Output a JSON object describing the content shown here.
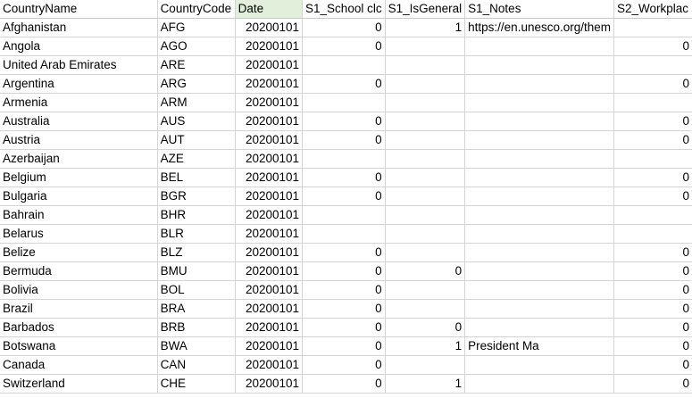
{
  "columns": [
    "CountryName",
    "CountryCode",
    "Date",
    "S1_School clc",
    "S1_IsGeneral",
    "S1_Notes",
    "S2_Workplac"
  ],
  "rows": [
    [
      "Afghanistan",
      "AFG",
      "20200101",
      "0",
      "1",
      "https://en.unesco.org/them",
      ""
    ],
    [
      "Angola",
      "AGO",
      "20200101",
      "0",
      "",
      "",
      "0"
    ],
    [
      "United Arab Emirates",
      "ARE",
      "20200101",
      "",
      "",
      "",
      ""
    ],
    [
      "Argentina",
      "ARG",
      "20200101",
      "0",
      "",
      "",
      "0"
    ],
    [
      "Armenia",
      "ARM",
      "20200101",
      "",
      "",
      "",
      ""
    ],
    [
      "Australia",
      "AUS",
      "20200101",
      "0",
      "",
      "",
      "0"
    ],
    [
      "Austria",
      "AUT",
      "20200101",
      "0",
      "",
      "",
      "0"
    ],
    [
      "Azerbaijan",
      "AZE",
      "20200101",
      "",
      "",
      "",
      ""
    ],
    [
      "Belgium",
      "BEL",
      "20200101",
      "0",
      "",
      "",
      "0"
    ],
    [
      "Bulgaria",
      "BGR",
      "20200101",
      "0",
      "",
      "",
      "0"
    ],
    [
      "Bahrain",
      "BHR",
      "20200101",
      "",
      "",
      "",
      ""
    ],
    [
      "Belarus",
      "BLR",
      "20200101",
      "",
      "",
      "",
      ""
    ],
    [
      "Belize",
      "BLZ",
      "20200101",
      "0",
      "",
      "",
      "0"
    ],
    [
      "Bermuda",
      "BMU",
      "20200101",
      "0",
      "0",
      "",
      "0"
    ],
    [
      "Bolivia",
      "BOL",
      "20200101",
      "0",
      "",
      "",
      "0"
    ],
    [
      "Brazil",
      "BRA",
      "20200101",
      "0",
      "",
      "",
      "0"
    ],
    [
      "Barbados",
      "BRB",
      "20200101",
      "0",
      "0",
      "",
      "0"
    ],
    [
      "Botswana",
      "BWA",
      "20200101",
      "0",
      "1",
      "President Ma",
      "0"
    ],
    [
      "Canada",
      "CAN",
      "20200101",
      "0",
      "",
      "",
      "0"
    ],
    [
      "Switzerland",
      "CHE",
      "20200101",
      "0",
      "1",
      "",
      "0"
    ]
  ]
}
